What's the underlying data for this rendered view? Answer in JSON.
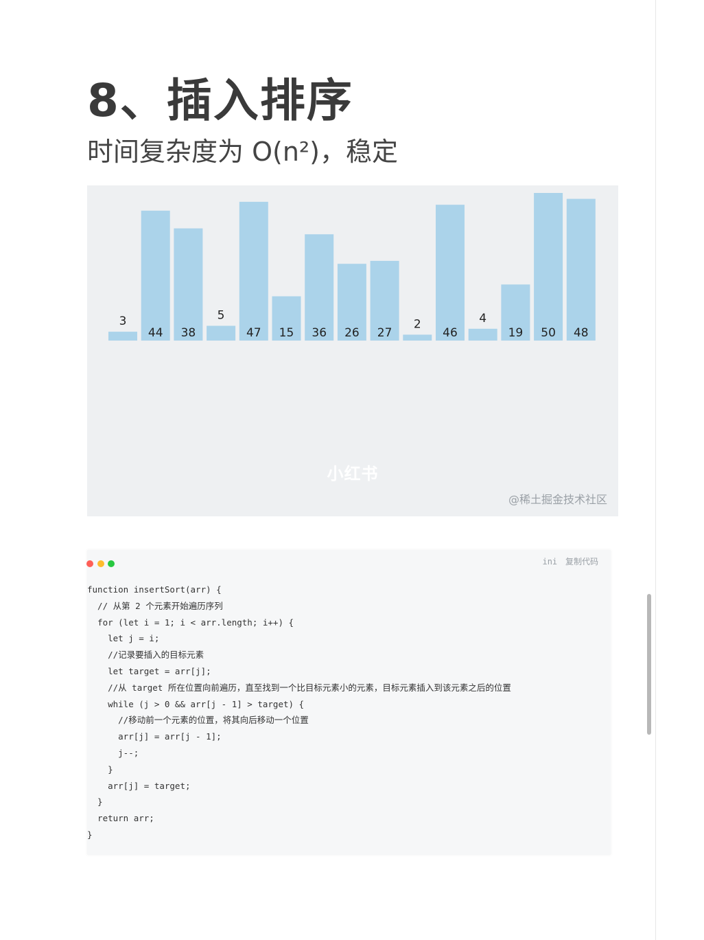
{
  "heading": {
    "title": "8、插入排序",
    "subtitle": "时间复杂度为 O(n²)，稳定"
  },
  "visualization": {
    "center_watermark": "小红书",
    "credit": "@稀土掘金技术社区",
    "bar_color": "#abd3ea",
    "values": [
      3,
      44,
      38,
      5,
      47,
      15,
      36,
      26,
      27,
      2,
      46,
      4,
      19,
      50,
      48
    ]
  },
  "code_block": {
    "language": "ini",
    "copy_label": "复制代码",
    "window_dots": [
      "#fe5f57",
      "#febc2e",
      "#28c840"
    ],
    "lines": [
      "function insertSort(arr) {",
      "  // 从第 2 个元素开始遍历序列",
      "  for (let i = 1; i < arr.length; i++) {",
      "    let j = i;",
      "    //记录要插入的目标元素",
      "    let target = arr[j];",
      "    //从 target 所在位置向前遍历，直至找到一个比目标元素小的元素，目标元素插入到该元素之后的位置",
      "    while (j > 0 && arr[j - 1] > target) {",
      "      //移动前一个元素的位置，将其向后移动一个位置",
      "      arr[j] = arr[j - 1];",
      "      j--;",
      "    }",
      "    arr[j] = target;",
      "  }",
      "  return arr;",
      "}"
    ]
  }
}
